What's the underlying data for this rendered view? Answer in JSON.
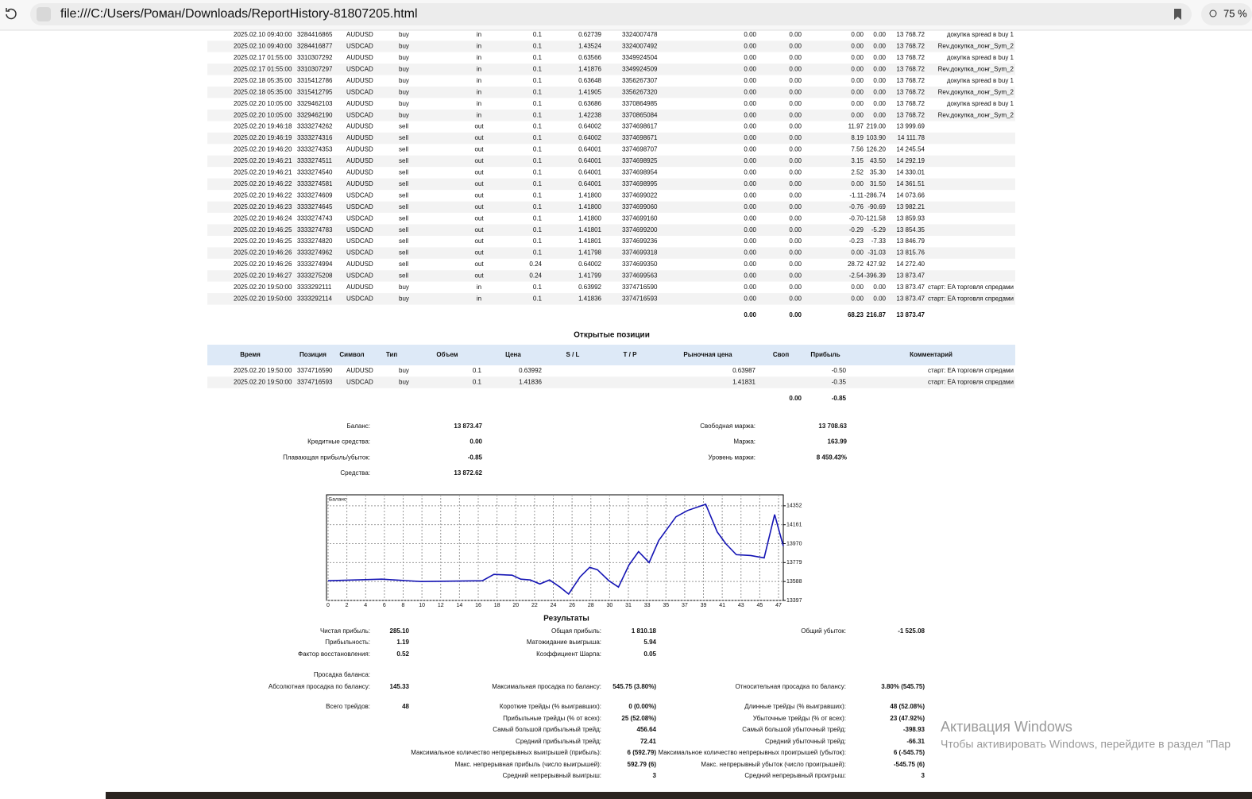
{
  "browser": {
    "url": "file:///C:/Users/Роман/Downloads/ReportHistory-81807205.html",
    "zoom": "75 %"
  },
  "deals": {
    "rows": [
      [
        "2025.02.10 09:40:00",
        "3284416865",
        "AUDUSD",
        "buy",
        "in",
        "0.1",
        "0.62739",
        "3324007478",
        "0.00",
        "0.00",
        "0.00",
        "0.00",
        "13 768.72",
        "докупка spread в buy 1"
      ],
      [
        "2025.02.10 09:40:00",
        "3284416877",
        "USDCAD",
        "buy",
        "in",
        "0.1",
        "1.43524",
        "3324007492",
        "0.00",
        "0.00",
        "0.00",
        "0.00",
        "13 768.72",
        "Rev.докупка_лонг_Sym_2"
      ],
      [
        "2025.02.17 01:55:00",
        "3310307292",
        "AUDUSD",
        "buy",
        "in",
        "0.1",
        "0.63566",
        "3349924504",
        "0.00",
        "0.00",
        "0.00",
        "0.00",
        "13 768.72",
        "докупка spread в buy 1"
      ],
      [
        "2025.02.17 01:55:00",
        "3310307297",
        "USDCAD",
        "buy",
        "in",
        "0.1",
        "1.41876",
        "3349924509",
        "0.00",
        "0.00",
        "0.00",
        "0.00",
        "13 768.72",
        "Rev.докупка_лонг_Sym_2"
      ],
      [
        "2025.02.18 05:35:00",
        "3315412786",
        "AUDUSD",
        "buy",
        "in",
        "0.1",
        "0.63648",
        "3356267307",
        "0.00",
        "0.00",
        "0.00",
        "0.00",
        "13 768.72",
        "докупка spread в buy 1"
      ],
      [
        "2025.02.18 05:35:00",
        "3315412795",
        "USDCAD",
        "buy",
        "in",
        "0.1",
        "1.41905",
        "3356267320",
        "0.00",
        "0.00",
        "0.00",
        "0.00",
        "13 768.72",
        "Rev.докупка_лонг_Sym_2"
      ],
      [
        "2025.02.20 10:05:00",
        "3329462103",
        "AUDUSD",
        "buy",
        "in",
        "0.1",
        "0.63686",
        "3370864985",
        "0.00",
        "0.00",
        "0.00",
        "0.00",
        "13 768.72",
        "докупка spread в buy 1"
      ],
      [
        "2025.02.20 10:05:00",
        "3329462190",
        "USDCAD",
        "buy",
        "in",
        "0.1",
        "1.42238",
        "3370865084",
        "0.00",
        "0.00",
        "0.00",
        "0.00",
        "13 768.72",
        "Rev.докупка_лонг_Sym_2"
      ],
      [
        "2025.02.20 19:46:18",
        "3333274262",
        "AUDUSD",
        "sell",
        "out",
        "0.1",
        "0.64002",
        "3374698617",
        "0.00",
        "0.00",
        "11.97",
        "219.00",
        "13 999.69"
      ],
      [
        "2025.02.20 19:46:19",
        "3333274316",
        "AUDUSD",
        "sell",
        "out",
        "0.1",
        "0.64002",
        "3374698671",
        "0.00",
        "0.00",
        "8.19",
        "103.90",
        "14 111.78"
      ],
      [
        "2025.02.20 19:46:20",
        "3333274353",
        "AUDUSD",
        "sell",
        "out",
        "0.1",
        "0.64001",
        "3374698707",
        "0.00",
        "0.00",
        "7.56",
        "126.20",
        "14 245.54"
      ],
      [
        "2025.02.20 19:46:21",
        "3333274511",
        "AUDUSD",
        "sell",
        "out",
        "0.1",
        "0.64001",
        "3374698925",
        "0.00",
        "0.00",
        "3.15",
        "43.50",
        "14 292.19"
      ],
      [
        "2025.02.20 19:46:21",
        "3333274540",
        "AUDUSD",
        "sell",
        "out",
        "0.1",
        "0.64001",
        "3374698954",
        "0.00",
        "0.00",
        "2.52",
        "35.30",
        "14 330.01"
      ],
      [
        "2025.02.20 19:46:22",
        "3333274581",
        "AUDUSD",
        "sell",
        "out",
        "0.1",
        "0.64001",
        "3374698995",
        "0.00",
        "0.00",
        "0.00",
        "31.50",
        "14 361.51"
      ],
      [
        "2025.02.20 19:46:22",
        "3333274609",
        "USDCAD",
        "sell",
        "out",
        "0.1",
        "1.41800",
        "3374699022",
        "0.00",
        "0.00",
        "-1.11",
        "-286.74",
        "14 073.66"
      ],
      [
        "2025.02.20 19:46:23",
        "3333274645",
        "USDCAD",
        "sell",
        "out",
        "0.1",
        "1.41800",
        "3374699060",
        "0.00",
        "0.00",
        "-0.76",
        "-90.69",
        "13 982.21"
      ],
      [
        "2025.02.20 19:46:24",
        "3333274743",
        "USDCAD",
        "sell",
        "out",
        "0.1",
        "1.41800",
        "3374699160",
        "0.00",
        "0.00",
        "-0.70",
        "-121.58",
        "13 859.93"
      ],
      [
        "2025.02.20 19:46:25",
        "3333274783",
        "USDCAD",
        "sell",
        "out",
        "0.1",
        "1.41801",
        "3374699200",
        "0.00",
        "0.00",
        "-0.29",
        "-5.29",
        "13 854.35"
      ],
      [
        "2025.02.20 19:46:25",
        "3333274820",
        "USDCAD",
        "sell",
        "out",
        "0.1",
        "1.41801",
        "3374699236",
        "0.00",
        "0.00",
        "-0.23",
        "-7.33",
        "13 846.79"
      ],
      [
        "2025.02.20 19:46:26",
        "3333274962",
        "USDCAD",
        "sell",
        "out",
        "0.1",
        "1.41798",
        "3374699318",
        "0.00",
        "0.00",
        "0.00",
        "-31.03",
        "13 815.76"
      ],
      [
        "2025.02.20 19:46:26",
        "3333274994",
        "AUDUSD",
        "sell",
        "out",
        "0.24",
        "0.64002",
        "3374699350",
        "0.00",
        "0.00",
        "28.72",
        "427.92",
        "14 272.40"
      ],
      [
        "2025.02.20 19:46:27",
        "3333275208",
        "USDCAD",
        "sell",
        "out",
        "0.24",
        "1.41799",
        "3374699563",
        "0.00",
        "0.00",
        "-2.54",
        "-396.39",
        "13 873.47"
      ],
      [
        "2025.02.20 19:50:00",
        "3333292111",
        "AUDUSD",
        "buy",
        "in",
        "0.1",
        "0.63992",
        "3374716590",
        "0.00",
        "0.00",
        "0.00",
        "0.00",
        "13 873.47",
        "старт: EA торговля спредами"
      ],
      [
        "2025.02.20 19:50:00",
        "3333292114",
        "USDCAD",
        "buy",
        "in",
        "0.1",
        "1.41836",
        "3374716593",
        "0.00",
        "0.00",
        "0.00",
        "0.00",
        "13 873.47",
        "старт: EA торговля спредами"
      ]
    ],
    "totals": [
      "0.00",
      "0.00",
      "68.23",
      "216.87",
      "13 873.47"
    ]
  },
  "open_positions": {
    "title": "Открытые позиции",
    "headers": [
      "Время",
      "Позиция",
      "Символ",
      "Тип",
      "Объем",
      "Цена",
      "S / L",
      "T / P",
      "Рыночная цена",
      "Своп",
      "Прибыль",
      "Комментарий"
    ],
    "rows": [
      [
        "2025.02.20 19:50:00",
        "3374716590",
        "AUDUSD",
        "buy",
        "0.1",
        "0.63992",
        "0.63987",
        "-0.50",
        "старт: EA торговля спредами"
      ],
      [
        "2025.02.20 19:50:00",
        "3374716593",
        "USDCAD",
        "buy",
        "0.1",
        "1.41836",
        "1.41831",
        "-0.35",
        "старт: EA торговля спредами"
      ]
    ],
    "totals": [
      "0.00",
      "-0.85"
    ]
  },
  "summary": {
    "left": [
      [
        "Баланс:",
        "13 873.47"
      ],
      [
        "Кредитные средства:",
        "0.00"
      ],
      [
        "Плавающая прибыль/убыток:",
        "-0.85"
      ],
      [
        "Средства:",
        "13 872.62"
      ]
    ],
    "right": [
      [
        "Свободная маржа:",
        "13 708.63"
      ],
      [
        "Маржа:",
        "163.99"
      ],
      [
        "Уровень маржи:",
        "8 459.43%"
      ]
    ]
  },
  "chart_data": {
    "type": "line",
    "title": "Баланс",
    "x": [
      0,
      5.6,
      9.7,
      16.1,
      17.3,
      19.2,
      20.1,
      21.1,
      22.1,
      23.1,
      24.2,
      25.1,
      26.3,
      27.3,
      28.1,
      29.3,
      30.3,
      31.4,
      32.4,
      33.5,
      34.5,
      36.3,
      37.5,
      39.4,
      40.6,
      41.5,
      42.6,
      44.1,
      45.5,
      46.6,
      47.5
    ],
    "values": [
      13596,
      13612,
      13588,
      13596,
      13660,
      13652,
      13612,
      13604,
      13564,
      13604,
      13532,
      13461,
      13636,
      13731,
      13707,
      13596,
      13532,
      13755,
      13890,
      13779,
      14002,
      14241,
      14304,
      14368,
      14089,
      13970,
      13859,
      13851,
      13827,
      14264,
      13946
    ],
    "color": "#1414b4",
    "xlim": [
      0,
      47.5
    ],
    "ylim": [
      13397,
      14463
    ],
    "yticks": [
      14352,
      14161,
      13970,
      13779,
      13588,
      13397
    ],
    "xticks": [
      0,
      2,
      4,
      6,
      8,
      10,
      12,
      14,
      16,
      18,
      20,
      22,
      24,
      26,
      28,
      30,
      31,
      33,
      35,
      37,
      39,
      41,
      43,
      45,
      47
    ]
  },
  "results": {
    "title": "Результаты",
    "rows": [
      {
        "c1": [
          "Чистая прибыль:",
          "285.10"
        ],
        "c2": [
          "Общая прибыль:",
          "1 810.18"
        ],
        "c3": [
          "Общий убыток:",
          "-1 525.08"
        ]
      },
      {
        "c1": [
          "Прибыльность:",
          "1.19"
        ],
        "c2": [
          "Матожидание выигрыша:",
          "5.94"
        ]
      },
      {
        "c1": [
          "Фактор восстановления:",
          "0.52"
        ],
        "c2": [
          "Коэффициент Шарпа:",
          "0.05"
        ]
      },
      {
        "c1": [
          "Просадка баланса:"
        ]
      },
      {
        "c1": [
          "Абсолютная просадка по балансу:",
          "145.33"
        ],
        "c2": [
          "Максимальная просадка по балансу:",
          "545.75 (3.80%)"
        ],
        "c3": [
          "Относительная просадка по балансу:",
          "3.80% (545.75)"
        ]
      },
      {
        "c1": [
          "Всего трейдов:",
          "48"
        ],
        "c2": [
          "Короткие трейды (% выигравших):",
          "0 (0.00%)"
        ],
        "c3": [
          "Длинные трейды (% выигравших):",
          "48 (52.08%)"
        ]
      },
      {
        "c2": [
          "Прибыльные трейды (% от всех):",
          "25 (52.08%)"
        ],
        "c3": [
          "Убыточные трейды (% от всех):",
          "23 (47.92%)"
        ]
      },
      {
        "c2": [
          "Самый большой прибыльный трейд:",
          "456.64"
        ],
        "c3": [
          "Самый большой убыточный трейд:",
          "-398.93"
        ]
      },
      {
        "c2": [
          "Средний прибыльный трейд:",
          "72.41"
        ],
        "c3": [
          "Средний убыточный трейд:",
          "-66.31"
        ]
      },
      {
        "c2": [
          "Максимальное количество непрерывных выигрышей (прибыль):",
          "6 (592.79)"
        ],
        "c3": [
          "Максимальное количество непрерывных проигрышей (убыток):",
          "6 (-545.75)"
        ]
      },
      {
        "c2": [
          "Макс. непрерывная прибыль (число выигрышей):",
          "592.79 (6)"
        ],
        "c3": [
          "Макс. непрерывный убыток (число проигрышей):",
          "-545.75 (6)"
        ]
      },
      {
        "c2": [
          "Средний непрерывный выигрыш:",
          "3"
        ],
        "c3": [
          "Средний непрерывный проигрыш:",
          "3"
        ]
      }
    ]
  },
  "watermark": {
    "title": "Активация Windows",
    "text": "Чтобы активировать Windows, перейдите в раздел \"Пар"
  }
}
